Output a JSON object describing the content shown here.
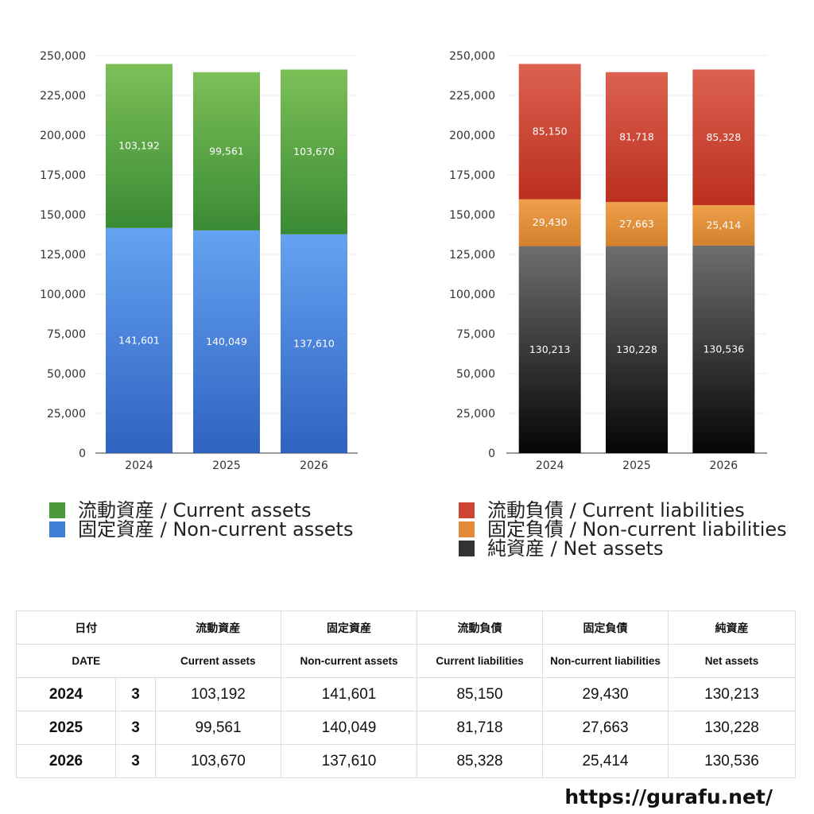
{
  "chart_data": [
    {
      "type": "bar",
      "stacked": true,
      "categories": [
        "2024",
        "2025",
        "2026"
      ],
      "ylim": [
        0,
        250000
      ],
      "yticks": [
        "0",
        "25,000",
        "50,000",
        "75,000",
        "100,000",
        "125,000",
        "150,000",
        "175,000",
        "200,000",
        "225,000",
        "250,000"
      ],
      "grid": true,
      "series": [
        {
          "name": "固定資産 / Non-current assets",
          "values": [
            141601,
            140049,
            137610
          ],
          "labels": [
            "141,601",
            "140,049",
            "137,610"
          ],
          "color_top": "#64a3f1",
          "color_bottom": "#2f62c0"
        },
        {
          "name": "流動資産 / Current assets",
          "values": [
            103192,
            99561,
            103670
          ],
          "labels": [
            "103,192",
            "99,561",
            "103,670"
          ],
          "color_top": "#7cc057",
          "color_bottom": "#3a8a35"
        }
      ],
      "legend_order": [
        1,
        0
      ],
      "legend_colors": [
        "#4a9a3c",
        "#3f7ed6"
      ]
    },
    {
      "type": "bar",
      "stacked": true,
      "categories": [
        "2024",
        "2025",
        "2026"
      ],
      "ylim": [
        0,
        250000
      ],
      "yticks": [
        "0",
        "25,000",
        "50,000",
        "75,000",
        "100,000",
        "125,000",
        "150,000",
        "175,000",
        "200,000",
        "225,000",
        "250,000"
      ],
      "grid": true,
      "series": [
        {
          "name": "純資産 / Net assets",
          "values": [
            130213,
            130228,
            130536
          ],
          "labels": [
            "130,213",
            "130,228",
            "130,536"
          ],
          "color_top": "#6e6e6e",
          "color_bottom": "#050505"
        },
        {
          "name": "固定負債 / Non-current liabilities",
          "values": [
            29430,
            27663,
            25414
          ],
          "labels": [
            "29,430",
            "27,663",
            "25,414"
          ],
          "color_top": "#eea04a",
          "color_bottom": "#d4802c"
        },
        {
          "name": "流動負債 / Current liabilities",
          "values": [
            85150,
            81718,
            85328
          ],
          "labels": [
            "85,150",
            "81,718",
            "85,328"
          ],
          "color_top": "#dc6150",
          "color_bottom": "#bb2f1e"
        }
      ],
      "legend_order": [
        2,
        1,
        0
      ],
      "legend_colors": [
        "#cf4433",
        "#e28a35",
        "#333333"
      ]
    }
  ],
  "table": {
    "header_jp": [
      "日付",
      "",
      "流動資産",
      "固定資産",
      "流動負債",
      "固定負債",
      "純資産"
    ],
    "header_en": [
      "DATE",
      "",
      "Current assets",
      "Non-current assets",
      "Current liabilities",
      "Non-current liabilities",
      "Net assets"
    ],
    "rows": [
      [
        "2024",
        "3",
        "103,192",
        "141,601",
        "85,150",
        "29,430",
        "130,213"
      ],
      [
        "2025",
        "3",
        "99,561",
        "140,049",
        "81,718",
        "27,663",
        "130,228"
      ],
      [
        "2026",
        "3",
        "103,670",
        "137,610",
        "85,328",
        "25,414",
        "130,536"
      ]
    ]
  },
  "watermark": "https://gurafu.net/"
}
